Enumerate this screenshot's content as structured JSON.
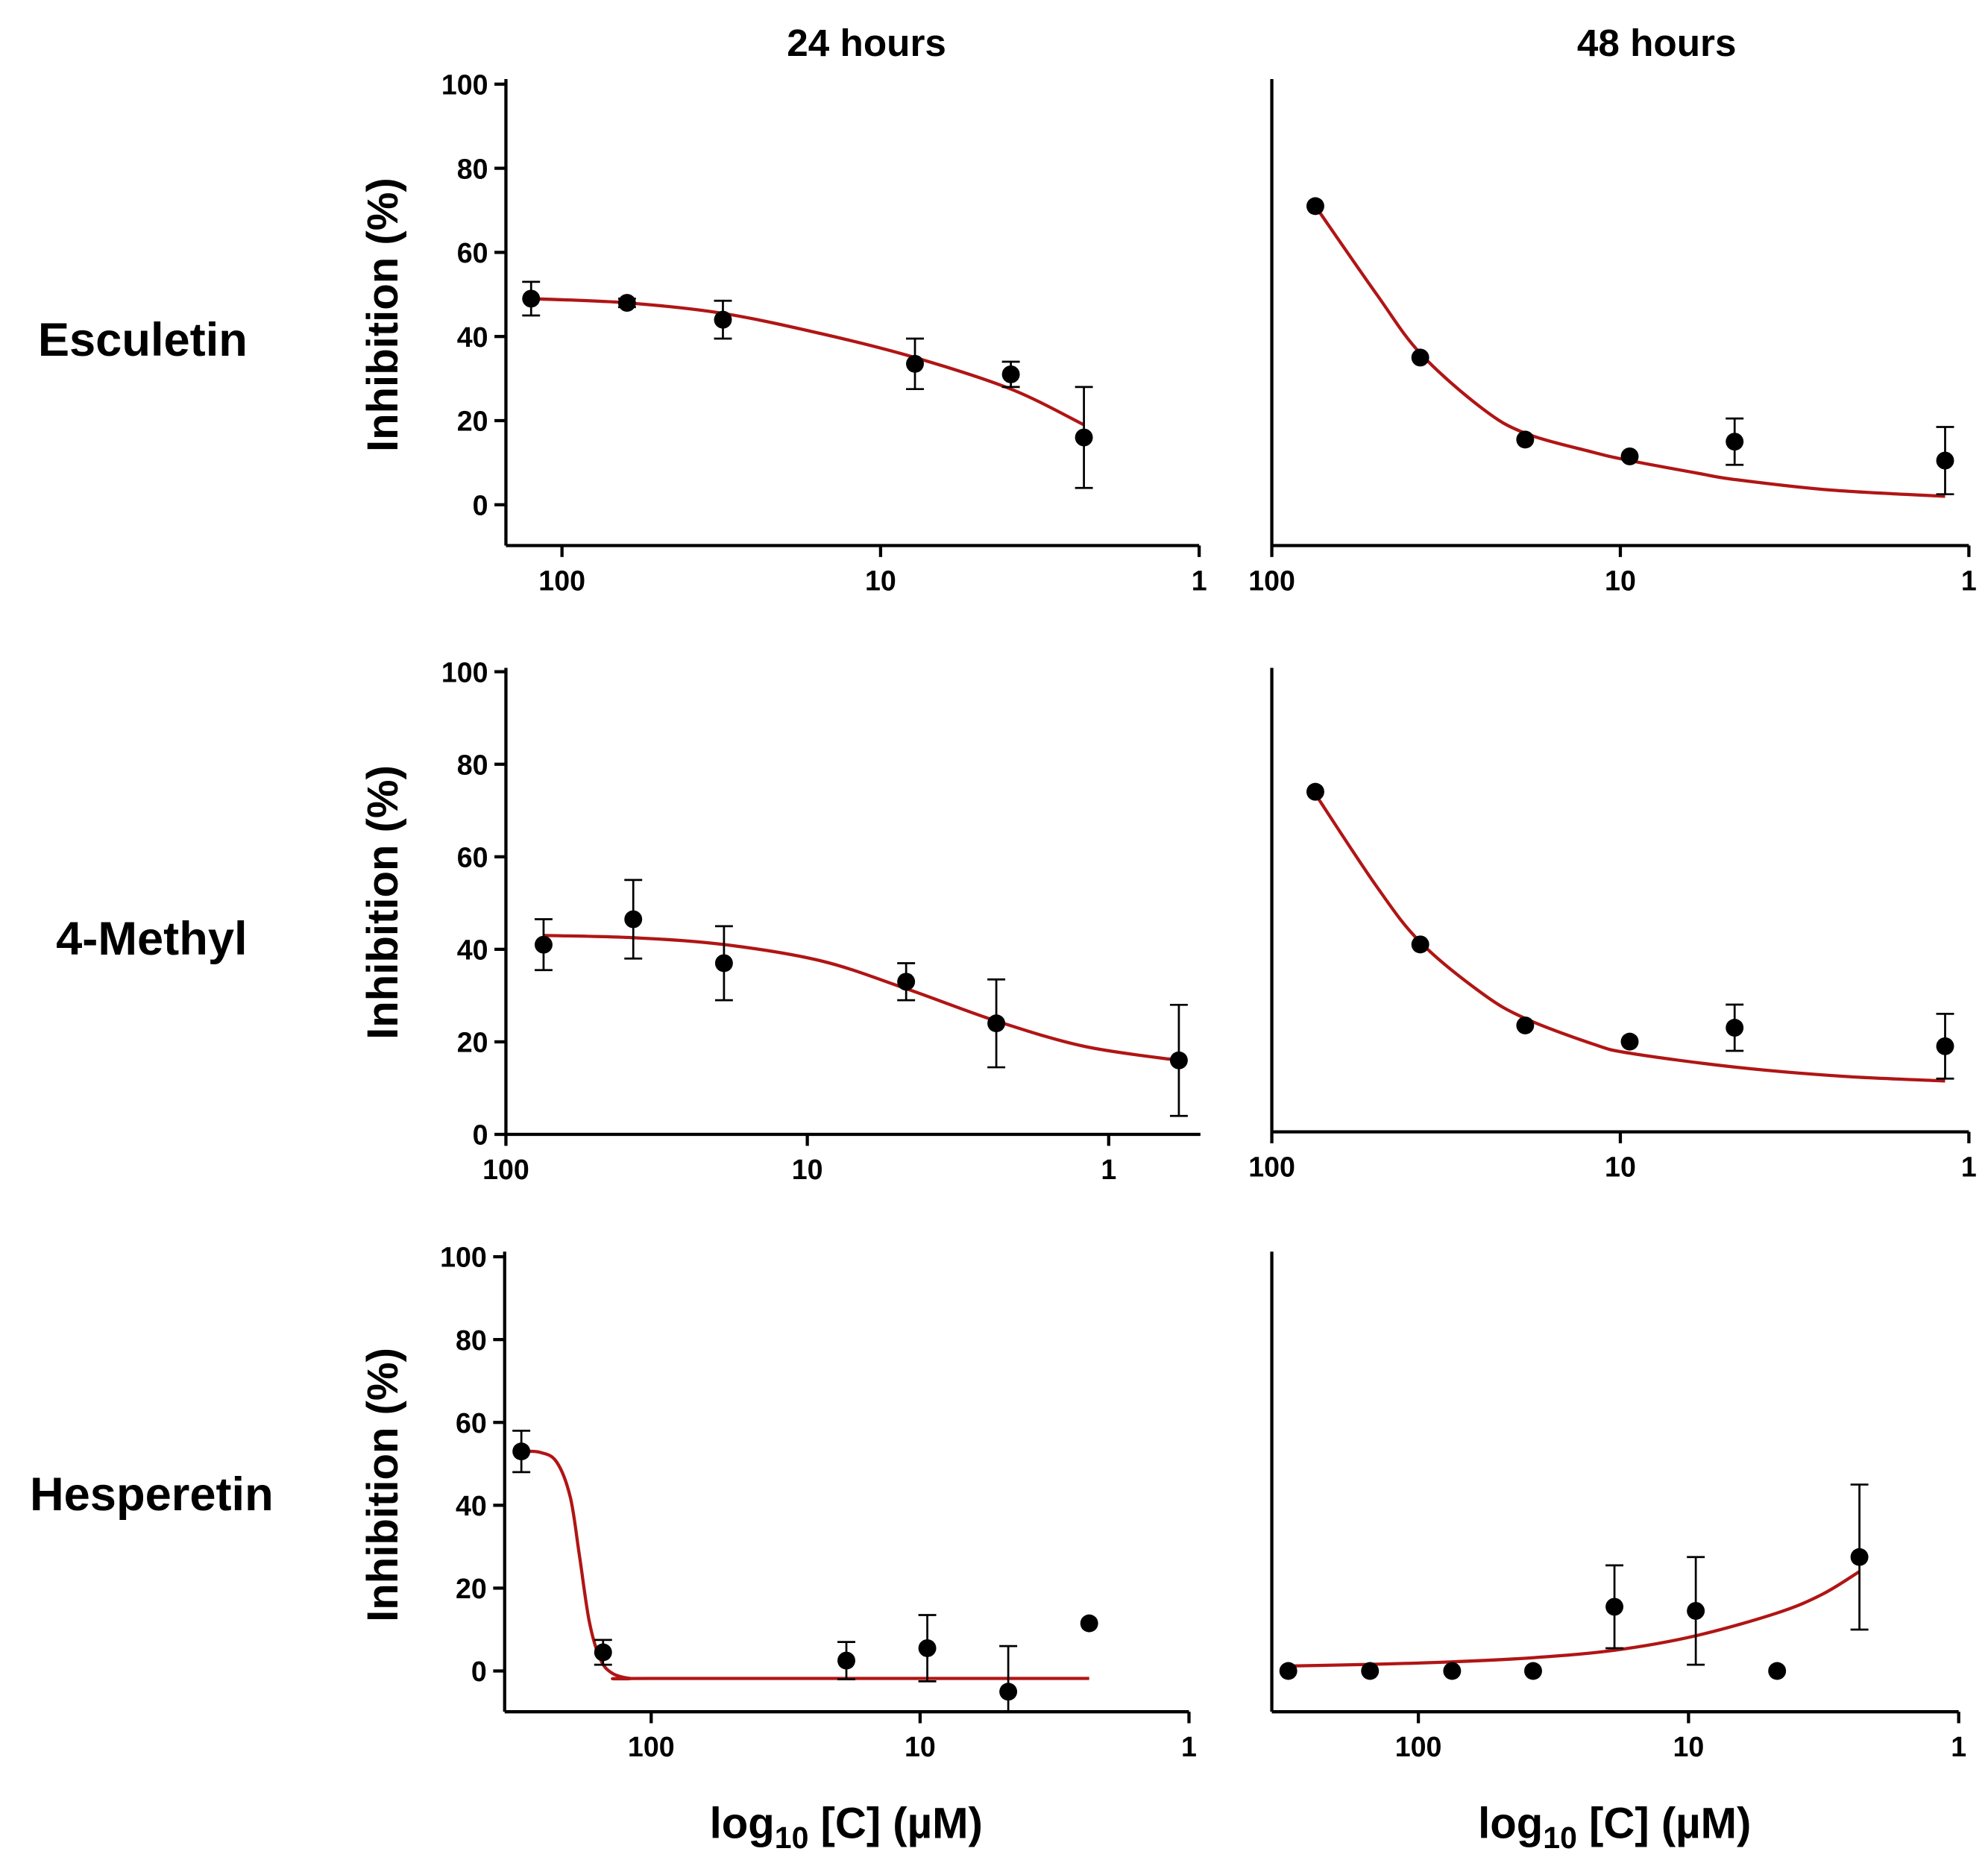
{
  "column_titles": [
    "24 hours",
    "48 hours"
  ],
  "row_labels": [
    "Esculetin",
    "4-Methyl",
    "Hesperetin"
  ],
  "ylabel": "Inhibition (%)",
  "xlabel": {
    "main": "log",
    "sub": "10",
    "rest": " [C] (µM)"
  },
  "colors": {
    "curve": "#b01515",
    "points": "#000000",
    "axes": "#000000"
  },
  "chart_data": [
    {
      "id": "esculetin-24h",
      "type": "scatter",
      "title": "Esculetin 24 hours",
      "xscale": "log-reversed",
      "xlim": [
        150,
        1
      ],
      "ylim": [
        -10,
        100
      ],
      "xticks": [
        100,
        10,
        1
      ],
      "xtick_labels": [
        "100",
        "10",
        "1"
      ],
      "yticks": [
        0,
        20,
        40,
        60,
        80,
        100
      ],
      "ytick_labels": [
        "0",
        "20",
        "40",
        "60",
        "80",
        "100"
      ],
      "points": [
        {
          "x": 125,
          "y": 49,
          "err": 4
        },
        {
          "x": 62.5,
          "y": 48,
          "err": 1
        },
        {
          "x": 31.25,
          "y": 44,
          "err": 4.5
        },
        {
          "x": 7.8,
          "y": 33.5,
          "err": 6
        },
        {
          "x": 3.9,
          "y": 31,
          "err": 3
        },
        {
          "x": 2.3,
          "y": 16,
          "err": 12
        }
      ],
      "fit_curve": [
        [
          125,
          49
        ],
        [
          62.5,
          48
        ],
        [
          31.25,
          45.5
        ],
        [
          15,
          40.5
        ],
        [
          7.8,
          35
        ],
        [
          3.9,
          27.5
        ],
        [
          2.3,
          19
        ]
      ]
    },
    {
      "id": "esculetin-48h",
      "type": "scatter",
      "title": "Esculetin 48 hours",
      "xscale": "log-reversed",
      "xlim": [
        100,
        1
      ],
      "ylim": [
        -10,
        100
      ],
      "xticks": [
        100,
        10,
        1
      ],
      "xtick_labels": [
        "100",
        "10",
        "1"
      ],
      "yticks": [],
      "ytick_labels": [],
      "points": [
        {
          "x": 75,
          "y": 71,
          "err": 0
        },
        {
          "x": 37.5,
          "y": 35,
          "err": 0
        },
        {
          "x": 18.75,
          "y": 15.5,
          "err": 0
        },
        {
          "x": 9.4,
          "y": 11.5,
          "err": 0
        },
        {
          "x": 4.7,
          "y": 15,
          "err": 5.5
        },
        {
          "x": 1.17,
          "y": 10.5,
          "err": 8
        }
      ],
      "fit_curve": [
        [
          75,
          71
        ],
        [
          50,
          50
        ],
        [
          37.5,
          36
        ],
        [
          25,
          23
        ],
        [
          18.75,
          17
        ],
        [
          12,
          12.5
        ],
        [
          9.4,
          10.5
        ],
        [
          6,
          7.5
        ],
        [
          4.7,
          6
        ],
        [
          2.5,
          3.5
        ],
        [
          1.17,
          2
        ]
      ]
    },
    {
      "id": "4-methyl-24h",
      "type": "scatter",
      "title": "4-Methyl 24 hours",
      "xscale": "log-reversed",
      "xlim": [
        100,
        0.5
      ],
      "ylim": [
        0,
        100
      ],
      "xticks": [
        100,
        10,
        1
      ],
      "xtick_labels": [
        "100",
        "10",
        "1"
      ],
      "yticks": [
        0,
        20,
        40,
        60,
        80,
        100
      ],
      "ytick_labels": [
        "0",
        "20",
        "40",
        "60",
        "80",
        "100"
      ],
      "points": [
        {
          "x": 75,
          "y": 41,
          "err": 5.5
        },
        {
          "x": 37.8,
          "y": 46.5,
          "err": 8.5
        },
        {
          "x": 18.9,
          "y": 37,
          "err": 8
        },
        {
          "x": 4.7,
          "y": 33,
          "err": 4
        },
        {
          "x": 2.36,
          "y": 24,
          "err": 9.5
        },
        {
          "x": 0.585,
          "y": 16,
          "err": 12
        }
      ],
      "fit_curve": [
        [
          75,
          43
        ],
        [
          37.5,
          42.5
        ],
        [
          18.75,
          41
        ],
        [
          9,
          37.5
        ],
        [
          4.7,
          31.5
        ],
        [
          2.36,
          24.5
        ],
        [
          1.2,
          19
        ],
        [
          0.585,
          16
        ]
      ]
    },
    {
      "id": "4-methyl-48h",
      "type": "scatter",
      "title": "4-Methyl 48 hours",
      "xscale": "log-reversed",
      "xlim": [
        100,
        1
      ],
      "ylim": [
        0,
        100
      ],
      "xticks": [
        100,
        10,
        1
      ],
      "xtick_labels": [
        "100",
        "10",
        "1"
      ],
      "yticks": [],
      "ytick_labels": [],
      "points": [
        {
          "x": 75,
          "y": 73.5,
          "err": 0
        },
        {
          "x": 37.5,
          "y": 40.5,
          "err": 0
        },
        {
          "x": 18.75,
          "y": 23,
          "err": 0
        },
        {
          "x": 9.4,
          "y": 19.5,
          "err": 0
        },
        {
          "x": 4.7,
          "y": 22.5,
          "err": 5
        },
        {
          "x": 1.17,
          "y": 18.5,
          "err": 7
        }
      ],
      "fit_curve": [
        [
          75,
          73
        ],
        [
          50,
          53
        ],
        [
          37.5,
          41
        ],
        [
          25,
          30
        ],
        [
          18.75,
          24.5
        ],
        [
          12,
          19
        ],
        [
          9.4,
          17
        ],
        [
          4.7,
          14
        ],
        [
          2.3,
          12
        ],
        [
          1.17,
          11
        ]
      ]
    },
    {
      "id": "hesperetin-24h",
      "type": "scatter",
      "title": "Hesperetin 24 hours",
      "xscale": "log-reversed",
      "xlim": [
        350,
        1
      ],
      "ylim": [
        -10,
        100
      ],
      "xticks": [
        100,
        10,
        1
      ],
      "xtick_labels": [
        "100",
        "10",
        "1"
      ],
      "yticks": [
        0,
        20,
        40,
        60,
        80,
        100
      ],
      "ytick_labels": [
        "0",
        "20",
        "40",
        "60",
        "80",
        "100"
      ],
      "points": [
        {
          "x": 304,
          "y": 53,
          "err": 5
        },
        {
          "x": 151,
          "y": 4.5,
          "err": 3
        },
        {
          "x": 18.8,
          "y": 2.5,
          "err": 4.5
        },
        {
          "x": 9.4,
          "y": 5.5,
          "err": 8
        },
        {
          "x": 4.7,
          "y": -5,
          "err": 11
        },
        {
          "x": 2.35,
          "y": 11.5,
          "err": 0
        }
      ],
      "fit_curve": [
        [
          310,
          53
        ],
        [
          260,
          52.8
        ],
        [
          225,
          50.5
        ],
        [
          200,
          42
        ],
        [
          185,
          28
        ],
        [
          170,
          12
        ],
        [
          155,
          3
        ],
        [
          140,
          -0.5
        ],
        [
          120,
          -1.8
        ],
        [
          100,
          -1.8
        ],
        [
          2.35,
          -1.8
        ]
      ]
    },
    {
      "id": "hesperetin-48h",
      "type": "scatter",
      "title": "Hesperetin 48 hours",
      "xscale": "log-reversed",
      "xlim": [
        350,
        1
      ],
      "ylim": [
        -10,
        100
      ],
      "xticks": [
        100,
        10,
        1
      ],
      "xtick_labels": [
        "100",
        "10",
        "1"
      ],
      "yticks": [],
      "ytick_labels": [],
      "points": [
        {
          "x": 303,
          "y": 0,
          "err": 0
        },
        {
          "x": 151,
          "y": 0,
          "err": 0
        },
        {
          "x": 75,
          "y": 0,
          "err": 0
        },
        {
          "x": 37.6,
          "y": 0,
          "err": 0
        },
        {
          "x": 18.8,
          "y": 15.5,
          "err": 10
        },
        {
          "x": 9.4,
          "y": 14.5,
          "err": 13
        },
        {
          "x": 4.7,
          "y": 0,
          "err": 0
        },
        {
          "x": 2.33,
          "y": 27.5,
          "err": 17.5
        }
      ],
      "fit_curve": [
        [
          303,
          1.2
        ],
        [
          150,
          1.6
        ],
        [
          75,
          2.2
        ],
        [
          37.6,
          3.2
        ],
        [
          18.8,
          5
        ],
        [
          9.4,
          8.5
        ],
        [
          4.7,
          14
        ],
        [
          3.2,
          18.5
        ],
        [
          2.33,
          24
        ]
      ]
    }
  ]
}
